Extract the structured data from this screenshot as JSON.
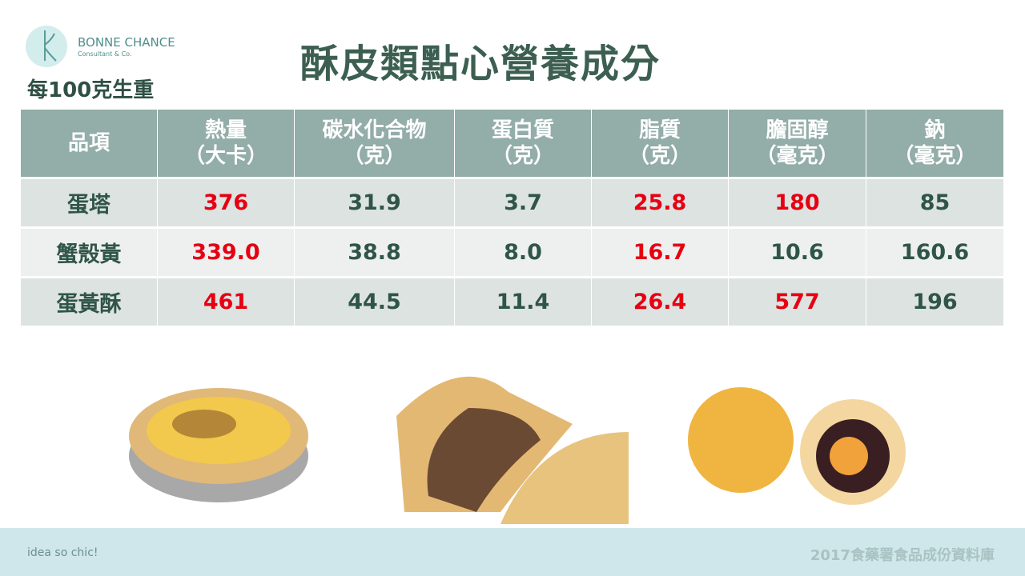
{
  "logo": {
    "name": "BONNE CHANCE",
    "tagline": "Consultant & Co."
  },
  "subtitle": "每100克生重",
  "title": "酥皮類點心營養成分",
  "table": {
    "header": [
      [
        "品項"
      ],
      [
        "熱量",
        "（大卡）"
      ],
      [
        "碳水化合物",
        "（克）"
      ],
      [
        "蛋白質",
        "（克）"
      ],
      [
        "脂質",
        "（克）"
      ],
      [
        "膽固醇",
        "（毫克）"
      ],
      [
        "鈉",
        "（毫克）"
      ]
    ],
    "highlight_color": "#e60012",
    "rows": [
      {
        "cells": [
          "蛋塔",
          "376",
          "31.9",
          "3.7",
          "25.8",
          "180",
          "85"
        ],
        "highlighted": [
          false,
          true,
          false,
          false,
          true,
          true,
          false
        ]
      },
      {
        "cells": [
          "蟹殼黃",
          "339.0",
          "38.8",
          "8.0",
          "16.7",
          "10.6",
          "160.6"
        ],
        "highlighted": [
          false,
          true,
          false,
          false,
          true,
          false,
          false
        ]
      },
      {
        "cells": [
          "蛋黃酥",
          "461",
          "44.5",
          "11.4",
          "26.4",
          "577",
          "196"
        ],
        "highlighted": [
          false,
          true,
          false,
          false,
          true,
          true,
          false
        ]
      }
    ]
  },
  "footer": {
    "slogan": "idea so chic!",
    "source": "2017食藥署食品成份資料庫"
  }
}
